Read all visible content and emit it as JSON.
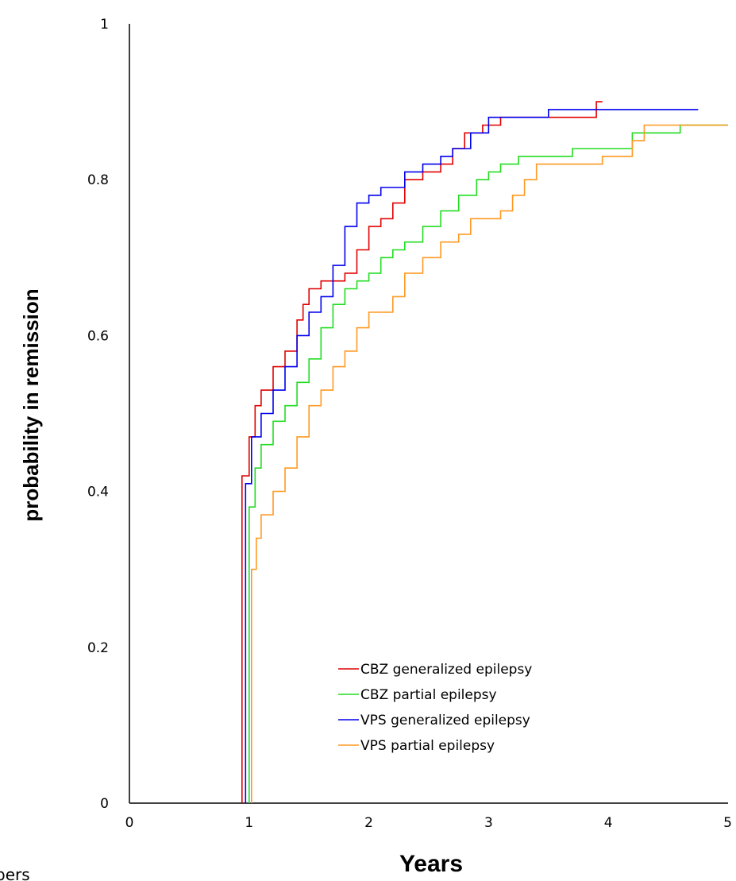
{
  "chart_data": {
    "type": "line",
    "title": "",
    "xlabel": "Years",
    "ylabel": "probability in remission",
    "xlim": [
      0,
      5
    ],
    "ylim": [
      0,
      1
    ],
    "x_ticks": [
      "0",
      "1",
      "2",
      "3",
      "4",
      "5"
    ],
    "y_ticks": [
      "0",
      "0.2",
      "0.4",
      "0.6",
      "0.8",
      "1"
    ],
    "grid": false,
    "legend_position": "bottom-right",
    "series": [
      {
        "name": "CBZ generalized epilepsy",
        "color": "#e00000",
        "points": [
          [
            0.94,
            0
          ],
          [
            0.94,
            0.42
          ],
          [
            1.0,
            0.42
          ],
          [
            1.0,
            0.47
          ],
          [
            1.05,
            0.51
          ],
          [
            1.1,
            0.53
          ],
          [
            1.2,
            0.56
          ],
          [
            1.3,
            0.58
          ],
          [
            1.4,
            0.62
          ],
          [
            1.45,
            0.64
          ],
          [
            1.5,
            0.66
          ],
          [
            1.6,
            0.67
          ],
          [
            1.8,
            0.68
          ],
          [
            1.9,
            0.71
          ],
          [
            2.0,
            0.74
          ],
          [
            2.1,
            0.75
          ],
          [
            2.2,
            0.77
          ],
          [
            2.3,
            0.8
          ],
          [
            2.45,
            0.81
          ],
          [
            2.6,
            0.82
          ],
          [
            2.7,
            0.84
          ],
          [
            2.8,
            0.86
          ],
          [
            2.95,
            0.87
          ],
          [
            3.1,
            0.88
          ],
          [
            3.5,
            0.88
          ],
          [
            3.9,
            0.88
          ],
          [
            3.9,
            0.9
          ],
          [
            3.95,
            0.9
          ]
        ]
      },
      {
        "name": "CBZ partial epilepsy",
        "color": "#22dd22",
        "points": [
          [
            1.0,
            0
          ],
          [
            1.0,
            0.38
          ],
          [
            1.05,
            0.43
          ],
          [
            1.1,
            0.46
          ],
          [
            1.2,
            0.49
          ],
          [
            1.3,
            0.51
          ],
          [
            1.4,
            0.54
          ],
          [
            1.5,
            0.57
          ],
          [
            1.6,
            0.61
          ],
          [
            1.7,
            0.64
          ],
          [
            1.8,
            0.66
          ],
          [
            1.9,
            0.67
          ],
          [
            2.0,
            0.68
          ],
          [
            2.1,
            0.7
          ],
          [
            2.2,
            0.71
          ],
          [
            2.3,
            0.72
          ],
          [
            2.45,
            0.74
          ],
          [
            2.6,
            0.76
          ],
          [
            2.75,
            0.78
          ],
          [
            2.9,
            0.8
          ],
          [
            3.0,
            0.81
          ],
          [
            3.1,
            0.82
          ],
          [
            3.25,
            0.83
          ],
          [
            3.5,
            0.83
          ],
          [
            3.7,
            0.84
          ],
          [
            4.1,
            0.84
          ],
          [
            4.2,
            0.86
          ],
          [
            4.6,
            0.86
          ],
          [
            4.6,
            0.87
          ],
          [
            5.0,
            0.87
          ]
        ]
      },
      {
        "name": "VPS generalized epilepsy",
        "color": "#0000ee",
        "points": [
          [
            0.97,
            0
          ],
          [
            0.97,
            0.41
          ],
          [
            1.0,
            0.41
          ],
          [
            1.02,
            0.47
          ],
          [
            1.1,
            0.5
          ],
          [
            1.2,
            0.53
          ],
          [
            1.3,
            0.56
          ],
          [
            1.4,
            0.6
          ],
          [
            1.5,
            0.63
          ],
          [
            1.6,
            0.65
          ],
          [
            1.7,
            0.69
          ],
          [
            1.8,
            0.74
          ],
          [
            1.9,
            0.77
          ],
          [
            2.0,
            0.78
          ],
          [
            2.1,
            0.79
          ],
          [
            2.2,
            0.79
          ],
          [
            2.3,
            0.81
          ],
          [
            2.45,
            0.82
          ],
          [
            2.6,
            0.83
          ],
          [
            2.7,
            0.84
          ],
          [
            2.85,
            0.86
          ],
          [
            3.0,
            0.88
          ],
          [
            3.5,
            0.88
          ],
          [
            3.5,
            0.89
          ],
          [
            4.75,
            0.89
          ]
        ]
      },
      {
        "name": "VPS partial epilepsy",
        "color": "#ff9922",
        "points": [
          [
            1.02,
            0
          ],
          [
            1.02,
            0.3
          ],
          [
            1.06,
            0.34
          ],
          [
            1.1,
            0.37
          ],
          [
            1.2,
            0.4
          ],
          [
            1.3,
            0.43
          ],
          [
            1.4,
            0.47
          ],
          [
            1.5,
            0.51
          ],
          [
            1.6,
            0.53
          ],
          [
            1.7,
            0.56
          ],
          [
            1.8,
            0.58
          ],
          [
            1.9,
            0.61
          ],
          [
            2.0,
            0.63
          ],
          [
            2.2,
            0.65
          ],
          [
            2.3,
            0.68
          ],
          [
            2.45,
            0.7
          ],
          [
            2.6,
            0.72
          ],
          [
            2.75,
            0.73
          ],
          [
            2.85,
            0.75
          ],
          [
            3.1,
            0.76
          ],
          [
            3.2,
            0.78
          ],
          [
            3.3,
            0.8
          ],
          [
            3.4,
            0.82
          ],
          [
            3.65,
            0.82
          ],
          [
            3.9,
            0.82
          ],
          [
            3.95,
            0.83
          ],
          [
            4.2,
            0.85
          ],
          [
            4.3,
            0.87
          ],
          [
            5.0,
            0.87
          ]
        ]
      }
    ]
  },
  "fragments": {
    "bottom_left_text": "pers"
  }
}
